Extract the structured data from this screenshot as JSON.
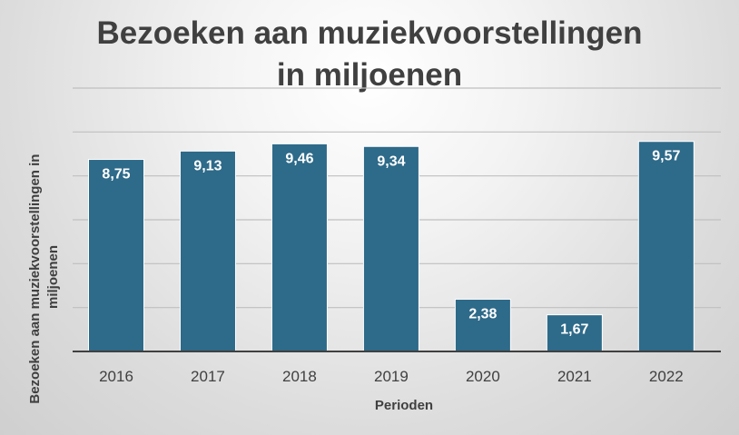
{
  "chart_data": {
    "type": "bar",
    "title_lines": [
      "Bezoeken aan muziekvoorstellingen",
      "in miljoenen"
    ],
    "xlabel": "Perioden",
    "ylabel_lines": [
      "Bezoeken aan muziekvoorstellingen in",
      "miljoenen"
    ],
    "categories": [
      "2016",
      "2017",
      "2018",
      "2019",
      "2020",
      "2021",
      "2022"
    ],
    "values": [
      8.75,
      9.13,
      9.46,
      9.34,
      2.38,
      1.67,
      9.57
    ],
    "value_labels": [
      "8,75",
      "9,13",
      "9,46",
      "9,34",
      "2,38",
      "1,67",
      "9,57"
    ],
    "ylim": [
      0,
      12
    ],
    "ytick_step": 2,
    "grid": true,
    "bar_color": "#2e6a89",
    "gridline_color": "#bfbfbf",
    "axis_color": "#404040",
    "legend": "none"
  }
}
